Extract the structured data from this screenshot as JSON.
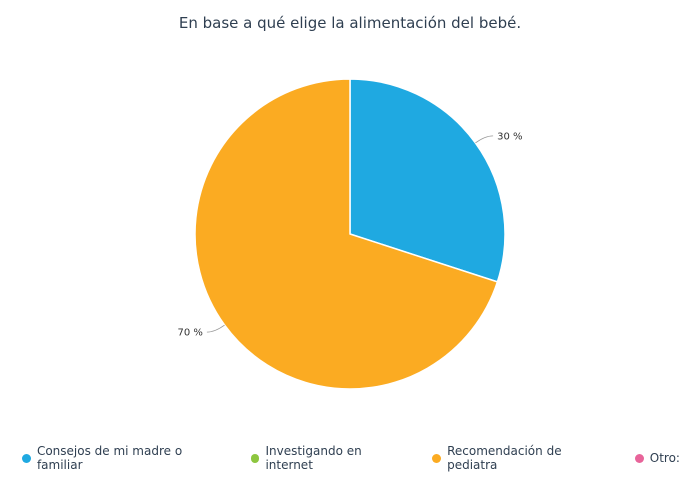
{
  "chart_data": {
    "type": "pie",
    "title": "En base a qué elige la alimentación del bebé.",
    "slices": [
      {
        "label": "Consejos de mi madre o familiar",
        "value": 30,
        "display": "30 %",
        "color": "#1fa9e1"
      },
      {
        "label": "Investigando en internet",
        "value": 0,
        "display": "",
        "color": "#8dc63f"
      },
      {
        "label": "Recomendación de pediatra",
        "value": 70,
        "display": "70 %",
        "color": "#fbab22"
      },
      {
        "label": "Otro:",
        "value": 0,
        "display": "",
        "color": "#e8649a"
      }
    ],
    "legend_position": "bottom-left"
  }
}
